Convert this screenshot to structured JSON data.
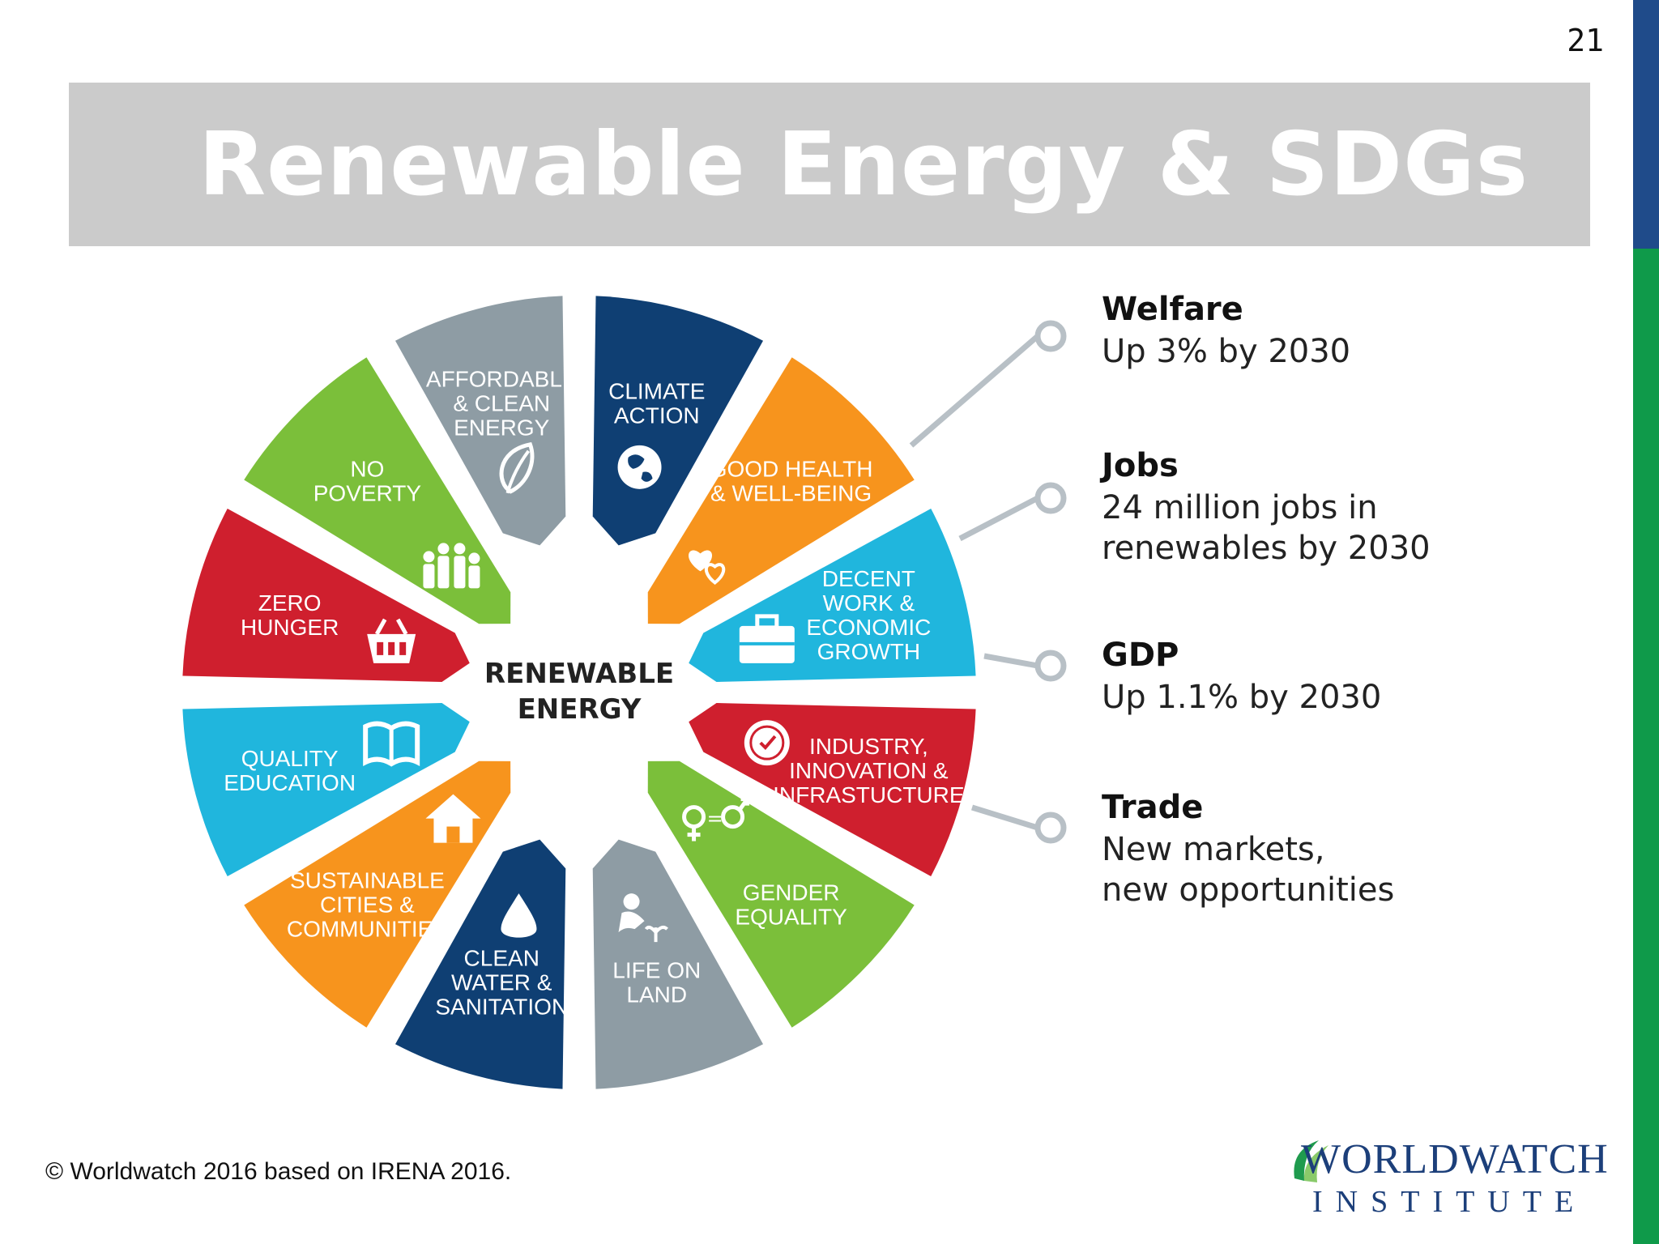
{
  "slide": {
    "page_number": "21",
    "title": "Renewable Energy & SDGs"
  },
  "diagram": {
    "center_label": [
      "RENEWABLE",
      "ENERGY"
    ],
    "segments": [
      {
        "id": "climate-action",
        "label": [
          "CLIMATE",
          "ACTION"
        ],
        "color": "#0f3f73",
        "icon": "globe-icon"
      },
      {
        "id": "good-health",
        "label": [
          "GOOD HEALTH",
          "& WELL-BEING"
        ],
        "color": "#f7941d",
        "icon": "hearts-icon"
      },
      {
        "id": "decent-work",
        "label": [
          "DECENT",
          "WORK &",
          "ECONOMIC",
          "GROWTH"
        ],
        "color": "#20b6dd",
        "icon": "briefcase-icon"
      },
      {
        "id": "industry",
        "label": [
          "INDUSTRY,",
          "INNOVATION &",
          "INFRASTUCTURE"
        ],
        "color": "#cf1f2e",
        "icon": "clock-icon"
      },
      {
        "id": "gender-equality",
        "label": [
          "GENDER",
          "EQUALITY"
        ],
        "color": "#7bbf3a",
        "icon": "gender-equality-icon"
      },
      {
        "id": "life-on-land",
        "label": [
          "LIFE ON",
          "LAND"
        ],
        "color": "#8e9ca4",
        "icon": "planting-icon"
      },
      {
        "id": "clean-water",
        "label": [
          "CLEAN",
          "WATER &",
          "SANITATION"
        ],
        "color": "#0f3f73",
        "icon": "water-drop-icon"
      },
      {
        "id": "sustainable-cities",
        "label": [
          "SUSTAINABLE",
          "CITIES &",
          "COMMUNITIES"
        ],
        "color": "#f7941d",
        "icon": "house-icon"
      },
      {
        "id": "quality-education",
        "label": [
          "QUALITY",
          "EDUCATION"
        ],
        "color": "#20b6dd",
        "icon": "book-icon"
      },
      {
        "id": "zero-hunger",
        "label": [
          "ZERO",
          "HUNGER"
        ],
        "color": "#cf1f2e",
        "icon": "basket-icon"
      },
      {
        "id": "no-poverty",
        "label": [
          "NO",
          "POVERTY"
        ],
        "color": "#7bbf3a",
        "icon": "family-icon"
      },
      {
        "id": "affordable-energy",
        "label": [
          "AFFORDABLE",
          "& CLEAN",
          "ENERGY"
        ],
        "color": "#8e9ca4",
        "icon": "leaf-icon"
      }
    ],
    "connector_color": "#b8c0c6",
    "impacts": [
      {
        "title": "Welfare",
        "lines": [
          "Up 3% by 2030"
        ]
      },
      {
        "title": "Jobs",
        "lines": [
          "24 million jobs in",
          "renewables by 2030"
        ]
      },
      {
        "title": "GDP",
        "lines": [
          "Up 1.1% by 2030"
        ]
      },
      {
        "title": "Trade",
        "lines": [
          "New markets,",
          "new opportunities"
        ]
      }
    ]
  },
  "footer": {
    "copyright": "© Worldwatch 2016 based on IRENA 2016.",
    "logo_name": "WORLDWATCH",
    "logo_sub": "INSTITUTE"
  }
}
